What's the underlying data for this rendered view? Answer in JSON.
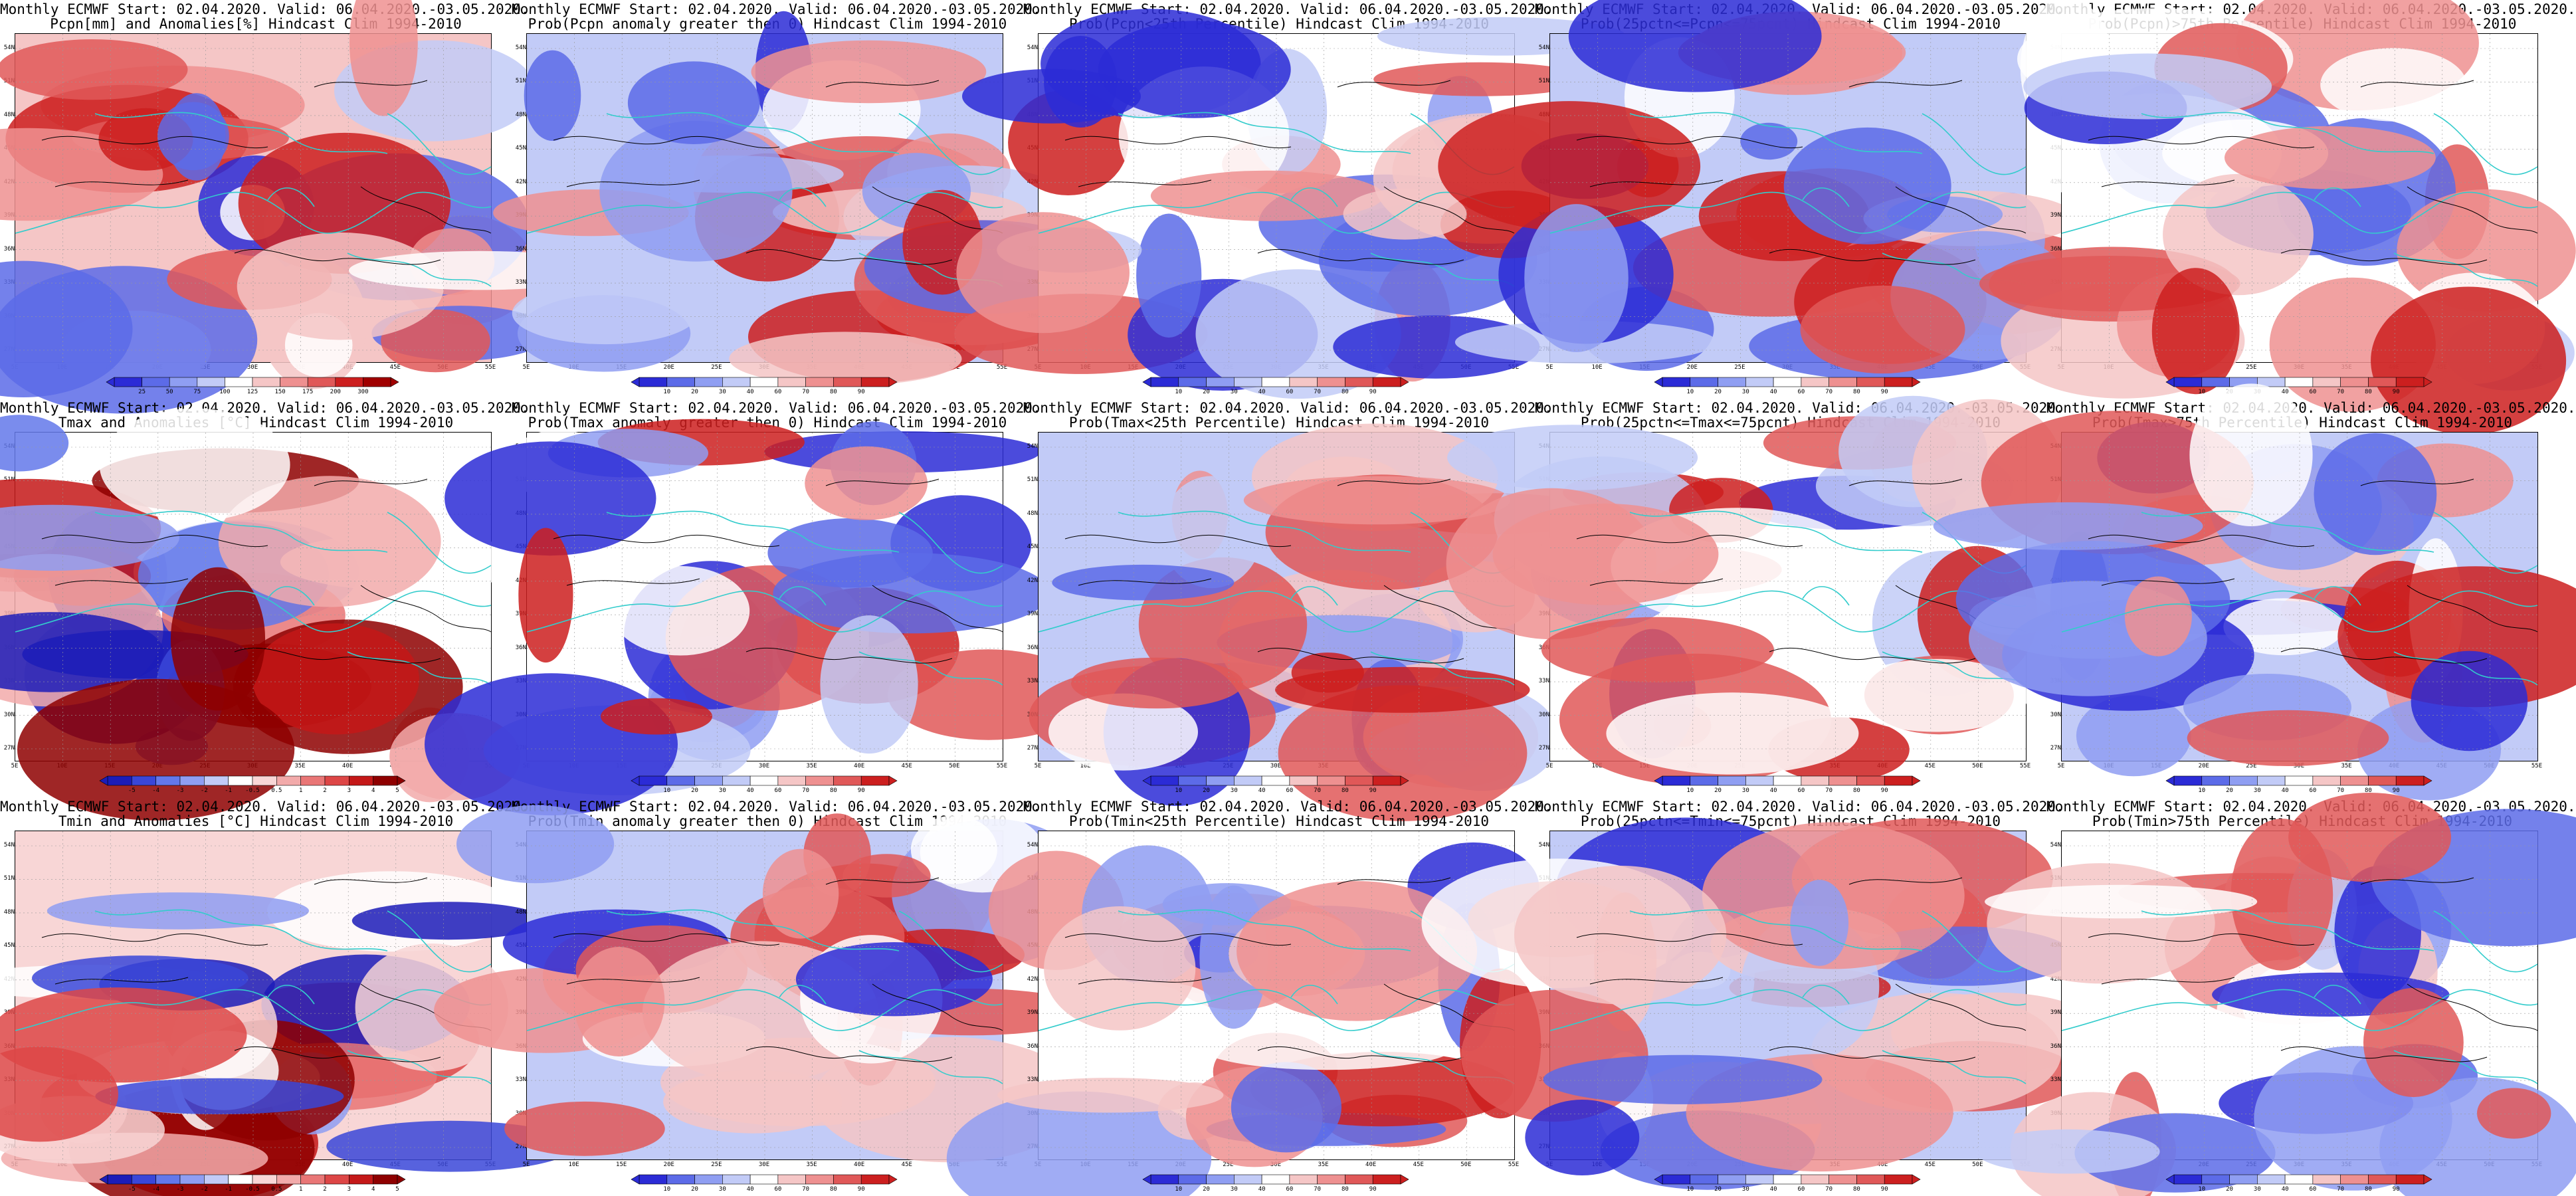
{
  "rows": [
    {
      "variable": "precipitation",
      "panels": [
        {
          "title1": "Monthly ECMWF Start: 02.04.2020. Valid: 06.04.2020.-03.05.2020.",
          "title2": "Pcpn[mm] and Anomalies[%] Hindcast Clim 1994-2010",
          "colorbar_ticks": [
            "25",
            "50",
            "75",
            "100",
            "125",
            "150",
            "175",
            "200",
            "300"
          ],
          "palette": "precip_anomaly"
        },
        {
          "title1": "Monthly ECMWF Start: 02.04.2020. Valid: 06.04.2020.-03.05.2020.",
          "title2": "Prob(Pcpn anomaly greater then 0) Hindcast Clim 1994-2010",
          "colorbar_ticks": [
            "10",
            "20",
            "30",
            "40",
            "60",
            "70",
            "80",
            "90"
          ],
          "palette": "probability"
        },
        {
          "title1": "Monthly ECMWF Start: 02.04.2020. Valid: 06.04.2020.-03.05.2020.",
          "title2": "Prob(Pcpn<25th Percentile) Hindcast Clim 1994-2010",
          "colorbar_ticks": [
            "10",
            "20",
            "30",
            "40",
            "60",
            "70",
            "80",
            "90"
          ],
          "palette": "probability"
        },
        {
          "title1": "Monthly ECMWF Start: 02.04.2020. Valid: 06.04.2020.-03.05.2020.",
          "title2": "Prob(25pctn<=Pcpn<=75pcnt) Hindcast Clim 1994-2010",
          "colorbar_ticks": [
            "10",
            "20",
            "30",
            "40",
            "60",
            "70",
            "80",
            "90"
          ],
          "palette": "probability"
        },
        {
          "title1": "Monthly ECMWF Start: 02.04.2020. Valid: 06.04.2020.-03.05.2020.",
          "title2": "Prob(Pcpn)>75th Percentile) Hindcast Clim 1994-2010",
          "colorbar_ticks": [
            "10",
            "20",
            "30",
            "40",
            "60",
            "70",
            "80",
            "90"
          ],
          "palette": "probability"
        }
      ]
    },
    {
      "variable": "tmax",
      "panels": [
        {
          "title1": "Monthly ECMWF Start: 02.04.2020. Valid: 06.04.2020.-03.05.2020.",
          "title2": "Tmax and Anomalies [°C] Hindcast Clim 1994-2010",
          "colorbar_ticks": [
            "-5",
            "-4",
            "-3",
            "-2",
            "-1",
            "-0.5",
            "0.5",
            "1",
            "2",
            "3",
            "4",
            "5"
          ],
          "palette": "temp_anomaly"
        },
        {
          "title1": "Monthly ECMWF Start: 02.04.2020. Valid: 06.04.2020.-03.05.2020.",
          "title2": "Prob(Tmax anomaly greater then 0) Hindcast Clim 1994-2010",
          "colorbar_ticks": [
            "10",
            "20",
            "30",
            "40",
            "60",
            "70",
            "80",
            "90"
          ],
          "palette": "probability"
        },
        {
          "title1": "Monthly ECMWF Start: 02.04.2020. Valid: 06.04.2020.-03.05.2020.",
          "title2": "Prob(Tmax<25th Percentile) Hindcast Clim 1994-2010",
          "colorbar_ticks": [
            "10",
            "20",
            "30",
            "40",
            "60",
            "70",
            "80",
            "90"
          ],
          "palette": "probability"
        },
        {
          "title1": "Monthly ECMWF Start: 02.04.2020. Valid: 06.04.2020.-03.05.2020.",
          "title2": "Prob(25pctn<=Tmax<=75pcnt) Hindcast Clim 1994-2010",
          "colorbar_ticks": [
            "10",
            "20",
            "30",
            "40",
            "60",
            "70",
            "80",
            "90"
          ],
          "palette": "probability"
        },
        {
          "title1": "Monthly ECMWF Start: 02.04.2020. Valid: 06.04.2020.-03.05.2020.",
          "title2": "Prob(Tmax>75th Percentile) Hindcast Clim 1994-2010",
          "colorbar_ticks": [
            "10",
            "20",
            "30",
            "40",
            "60",
            "70",
            "80",
            "90"
          ],
          "palette": "probability"
        }
      ]
    },
    {
      "variable": "tmin",
      "panels": [
        {
          "title1": "Monthly ECMWF Start: 02.04.2020. Valid: 06.04.2020.-03.05.2020.",
          "title2": "Tmin and Anomalies [°C] Hindcast Clim 1994-2010",
          "colorbar_ticks": [
            "-5",
            "-4",
            "-3",
            "-2",
            "-1",
            "-0.5",
            "0.5",
            "1",
            "2",
            "3",
            "4",
            "5"
          ],
          "palette": "temp_anomaly"
        },
        {
          "title1": "Monthly ECMWF Start: 02.04.2020. Valid: 06.04.2020.-03.05.2020.",
          "title2": "Prob(Tmin anomaly greater then 0) Hindcast Clim 1994-2010",
          "colorbar_ticks": [
            "10",
            "20",
            "30",
            "40",
            "60",
            "70",
            "80",
            "90"
          ],
          "palette": "probability"
        },
        {
          "title1": "Monthly ECMWF Start: 02.04.2020. Valid: 06.04.2020.-03.05.2020.",
          "title2": "Prob(Tmin<25th Percentile) Hindcast Clim 1994-2010",
          "colorbar_ticks": [
            "10",
            "20",
            "30",
            "40",
            "60",
            "70",
            "80",
            "90"
          ],
          "palette": "probability"
        },
        {
          "title1": "Monthly ECMWF Start: 02.04.2020. Valid: 06.04.2020.-03.05.2020.",
          "title2": "Prob(25pctn<=Tmin<=75pcnt) Hindcast Clim 1994-2010",
          "colorbar_ticks": [
            "10",
            "20",
            "30",
            "40",
            "60",
            "70",
            "80",
            "90"
          ],
          "palette": "probability"
        },
        {
          "title1": "Monthly ECMWF Start: 02.04.2020. Valid: 06.04.2020.-03.05.2020.",
          "title2": "Prob(Tmin>75th Percentile) Hindcast Clim 1994-2010",
          "colorbar_ticks": [
            "10",
            "20",
            "30",
            "40",
            "60",
            "70",
            "80",
            "90"
          ],
          "palette": "probability"
        }
      ]
    }
  ],
  "axes": {
    "lat_labels": [
      "54N",
      "51N",
      "48N",
      "45N",
      "42N",
      "39N",
      "36N",
      "33N",
      "30N",
      "27N"
    ],
    "lon_labels": [
      "5E",
      "10E",
      "15E",
      "20E",
      "25E",
      "30E",
      "35E",
      "40E",
      "45E",
      "50E",
      "55E"
    ]
  },
  "palettes": {
    "probability": [
      "#2b2bd6",
      "#5c6be8",
      "#8f9ef2",
      "#c2cbf7",
      "#ffffff",
      "#f5c6c6",
      "#ee9090",
      "#e05858",
      "#cc1f1f"
    ],
    "precip_anomaly": [
      "#2b2bd6",
      "#5c6be8",
      "#8f9ef2",
      "#c2cbf7",
      "#ffffff",
      "#f5c6c6",
      "#ee9090",
      "#e05858",
      "#cc1f1f",
      "#a00000"
    ],
    "temp_anomaly": [
      "#1c1cb8",
      "#3a46d8",
      "#6378ea",
      "#8f9ef2",
      "#c2cbf7",
      "#ffffff",
      "#f8d6d6",
      "#f2aaaa",
      "#e97676",
      "#dd4646",
      "#c41818",
      "#8e0000"
    ]
  },
  "colors": {
    "coastline": "#33cccc",
    "contour": "#000000"
  }
}
